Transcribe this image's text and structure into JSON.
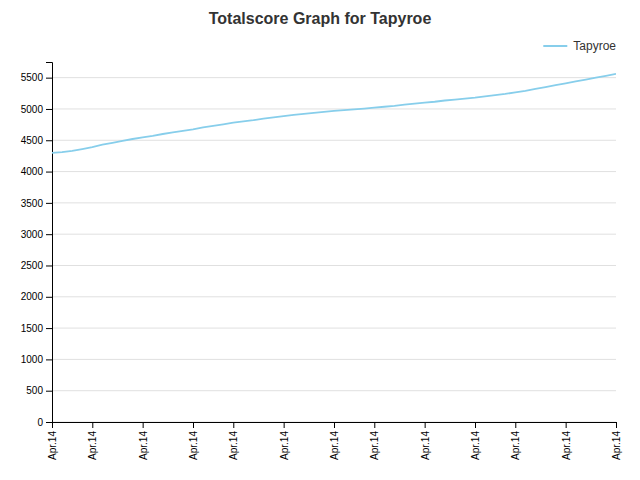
{
  "chart_data": {
    "type": "line",
    "title": "Totalscore Graph for Tapyroe",
    "categories": [
      "Apr.14",
      null,
      null,
      null,
      "Apr.14",
      null,
      null,
      null,
      null,
      "Apr.14",
      null,
      null,
      null,
      null,
      "Apr.14",
      null,
      null,
      null,
      "Apr.14",
      null,
      null,
      null,
      null,
      "Apr.14",
      null,
      null,
      null,
      null,
      "Apr.14",
      null,
      null,
      null,
      "Apr.14",
      null,
      null,
      null,
      null,
      "Apr.14",
      null,
      null,
      null,
      null,
      "Apr.14",
      null,
      null,
      null,
      "Apr.14",
      null,
      null,
      null,
      null,
      "Apr.14",
      null,
      null,
      null,
      null,
      "Apr.14"
    ],
    "series": [
      {
        "name": "Tapyroe",
        "color": "#87CEEB",
        "values": [
          4300,
          4310,
          4330,
          4360,
          4390,
          4430,
          4460,
          4490,
          4520,
          4545,
          4570,
          4600,
          4625,
          4650,
          4675,
          4705,
          4730,
          4755,
          4780,
          4800,
          4820,
          4845,
          4865,
          4885,
          4905,
          4920,
          4938,
          4955,
          4968,
          4980,
          4993,
          5005,
          5020,
          5035,
          5050,
          5070,
          5085,
          5100,
          5115,
          5135,
          5150,
          5165,
          5180,
          5200,
          5220,
          5240,
          5265,
          5290,
          5320,
          5350,
          5380,
          5410,
          5440,
          5470,
          5500,
          5530,
          5560
        ]
      }
    ],
    "ylim": [
      0,
      5750
    ],
    "yticks": [
      0,
      500,
      1000,
      1500,
      2000,
      2500,
      3000,
      3500,
      4000,
      4500,
      5000,
      5500
    ],
    "grid": true,
    "legend": "upper right"
  }
}
